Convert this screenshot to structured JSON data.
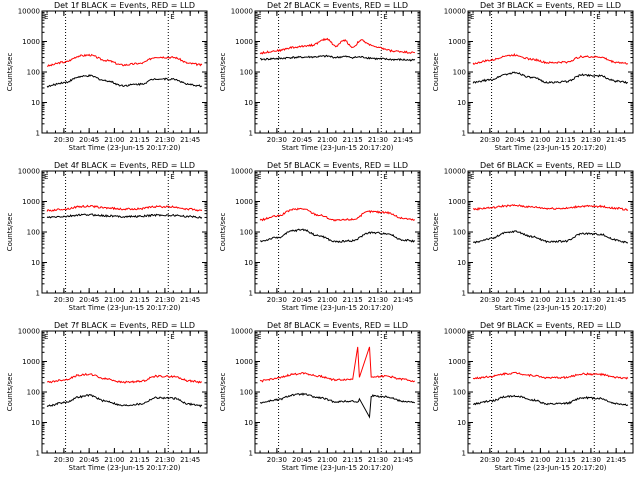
{
  "figure": {
    "common": {
      "title_suffix": "BLACK = Events, RED = LLD",
      "xlabel": "Start Time (23-Jun-15 20:17:20)",
      "ylabel": "Counts/sec",
      "x_tick_labels": [
        "20:30",
        "20:45",
        "21:00",
        "21:15",
        "21:30",
        "21:45"
      ],
      "y_tick_labels": [
        "1",
        "10",
        "100",
        "1000",
        "10000"
      ],
      "corner_marks": [
        "E",
        "E"
      ],
      "colors": {
        "events": "#000000",
        "lld": "#ff0000",
        "axes": "#000000"
      }
    }
  },
  "chart_data": [
    {
      "type": "line",
      "title": "Det 1f BLACK = Events, RED = LLD",
      "xlabel": "Start Time (23-Jun-15 20:17:20)",
      "ylabel": "Counts/sec",
      "x_range": [
        "20:17",
        "21:55"
      ],
      "ylim": [
        1,
        10000
      ],
      "yscale": "log",
      "vlines": [
        "20:31",
        "21:32"
      ],
      "x": [
        "20:20",
        "20:30",
        "20:40",
        "20:45",
        "20:55",
        "21:05",
        "21:15",
        "21:25",
        "21:35",
        "21:45",
        "21:52"
      ],
      "series": [
        {
          "name": "LLD",
          "values": [
            160,
            210,
            340,
            360,
            240,
            170,
            190,
            310,
            300,
            190,
            170
          ]
        },
        {
          "name": "Events",
          "values": [
            34,
            45,
            70,
            75,
            52,
            36,
            40,
            60,
            58,
            38,
            35
          ]
        }
      ]
    },
    {
      "type": "line",
      "title": "Det 2f BLACK = Events, RED = LLD",
      "xlabel": "Start Time (23-Jun-15 20:17:20)",
      "ylabel": "Counts/sec",
      "x_range": [
        "20:17",
        "21:55"
      ],
      "ylim": [
        1,
        10000
      ],
      "yscale": "log",
      "vlines": [
        "20:31",
        "21:32"
      ],
      "x": [
        "20:20",
        "20:30",
        "20:40",
        "20:50",
        "21:00",
        "21:05",
        "21:10",
        "21:15",
        "21:20",
        "21:25",
        "21:30",
        "21:40",
        "21:52"
      ],
      "series": [
        {
          "name": "LLD",
          "values": [
            420,
            500,
            640,
            750,
            1200,
            700,
            1100,
            650,
            1100,
            800,
            620,
            480,
            430
          ]
        },
        {
          "name": "Events",
          "values": [
            260,
            275,
            300,
            310,
            330,
            300,
            320,
            300,
            310,
            290,
            270,
            255,
            245
          ]
        }
      ]
    },
    {
      "type": "line",
      "title": "Det 3f BLACK = Events, RED = LLD",
      "xlabel": "Start Time (23-Jun-15 20:17:20)",
      "ylabel": "Counts/sec",
      "x_range": [
        "20:17",
        "21:55"
      ],
      "ylim": [
        1,
        10000
      ],
      "yscale": "log",
      "vlines": [
        "20:31",
        "21:32"
      ],
      "x": [
        "20:20",
        "20:30",
        "20:40",
        "20:45",
        "20:55",
        "21:05",
        "21:15",
        "21:25",
        "21:35",
        "21:45",
        "21:52"
      ],
      "series": [
        {
          "name": "LLD",
          "values": [
            190,
            240,
            340,
            360,
            260,
            200,
            210,
            320,
            310,
            210,
            190
          ]
        },
        {
          "name": "Events",
          "values": [
            45,
            55,
            85,
            95,
            65,
            45,
            48,
            80,
            75,
            50,
            45
          ]
        }
      ]
    },
    {
      "type": "line",
      "title": "Det 4f BLACK = Events, RED = LLD",
      "xlabel": "Start Time (23-Jun-15 20:17:20)",
      "ylabel": "Counts/sec",
      "x_range": [
        "20:17",
        "21:55"
      ],
      "ylim": [
        1,
        10000
      ],
      "yscale": "log",
      "vlines": [
        "20:31",
        "21:32"
      ],
      "x": [
        "20:20",
        "20:30",
        "20:40",
        "20:45",
        "20:55",
        "21:05",
        "21:15",
        "21:25",
        "21:35",
        "21:45",
        "21:52"
      ],
      "series": [
        {
          "name": "LLD",
          "values": [
            500,
            560,
            680,
            700,
            620,
            560,
            580,
            680,
            660,
            560,
            500
          ]
        },
        {
          "name": "Events",
          "values": [
            300,
            320,
            360,
            370,
            340,
            320,
            325,
            360,
            350,
            320,
            300
          ]
        }
      ]
    },
    {
      "type": "line",
      "title": "Det 5f BLACK = Events, RED = LLD",
      "xlabel": "Start Time (23-Jun-15 20:17:20)",
      "ylabel": "Counts/sec",
      "x_range": [
        "20:17",
        "21:55"
      ],
      "ylim": [
        1,
        10000
      ],
      "yscale": "log",
      "vlines": [
        "20:31",
        "21:32"
      ],
      "x": [
        "20:20",
        "20:30",
        "20:40",
        "20:45",
        "20:55",
        "21:05",
        "21:15",
        "21:25",
        "21:35",
        "21:45",
        "21:52"
      ],
      "series": [
        {
          "name": "LLD",
          "values": [
            250,
            330,
            550,
            580,
            360,
            240,
            260,
            470,
            440,
            280,
            250
          ]
        },
        {
          "name": "Events",
          "values": [
            50,
            65,
            110,
            120,
            75,
            48,
            52,
            95,
            90,
            55,
            50
          ]
        }
      ]
    },
    {
      "type": "line",
      "title": "Det 6f BLACK = Events, RED = LLD",
      "xlabel": "Start Time (23-Jun-15 20:17:20)",
      "ylabel": "Counts/sec",
      "x_range": [
        "20:17",
        "21:55"
      ],
      "ylim": [
        1,
        10000
      ],
      "yscale": "log",
      "vlines": [
        "20:31",
        "21:32"
      ],
      "x": [
        "20:20",
        "20:30",
        "20:40",
        "20:45",
        "20:55",
        "21:05",
        "21:15",
        "21:25",
        "21:35",
        "21:45",
        "21:52"
      ],
      "series": [
        {
          "name": "LLD",
          "values": [
            560,
            620,
            720,
            740,
            660,
            590,
            600,
            700,
            690,
            600,
            540
          ]
        },
        {
          "name": "Events",
          "values": [
            45,
            60,
            95,
            105,
            70,
            48,
            50,
            90,
            85,
            55,
            45
          ]
        }
      ]
    },
    {
      "type": "line",
      "title": "Det 7f BLACK = Events, RED = LLD",
      "xlabel": "Start Time (23-Jun-15 20:17:20)",
      "ylabel": "Counts/sec",
      "x_range": [
        "20:17",
        "21:55"
      ],
      "ylim": [
        1,
        10000
      ],
      "yscale": "log",
      "vlines": [
        "20:31",
        "21:32"
      ],
      "x": [
        "20:20",
        "20:30",
        "20:40",
        "20:45",
        "20:55",
        "21:05",
        "21:15",
        "21:25",
        "21:35",
        "21:45",
        "21:52"
      ],
      "series": [
        {
          "name": "LLD",
          "values": [
            210,
            250,
            360,
            380,
            270,
            210,
            220,
            330,
            320,
            230,
            210
          ]
        },
        {
          "name": "Events",
          "values": [
            35,
            45,
            70,
            78,
            50,
            36,
            40,
            65,
            62,
            40,
            35
          ]
        }
      ]
    },
    {
      "type": "line",
      "title": "Det 8f BLACK = Events, RED = LLD",
      "xlabel": "Start Time (23-Jun-15 20:17:20)",
      "ylabel": "Counts/sec",
      "x_range": [
        "20:17",
        "21:55"
      ],
      "ylim": [
        1,
        10000
      ],
      "yscale": "log",
      "vlines": [
        "20:31",
        "21:32"
      ],
      "x": [
        "20:20",
        "20:30",
        "20:40",
        "20:45",
        "20:55",
        "21:05",
        "21:15",
        "21:18",
        "21:19",
        "21:25",
        "21:26",
        "21:35",
        "21:45",
        "21:52"
      ],
      "series": [
        {
          "name": "LLD",
          "values": [
            230,
            280,
            380,
            420,
            330,
            250,
            260,
            3000,
            300,
            3000,
            320,
            330,
            260,
            230
          ]
        },
        {
          "name": "Events",
          "values": [
            45,
            55,
            80,
            85,
            65,
            48,
            50,
            45,
            60,
            15,
            75,
            70,
            50,
            45
          ]
        }
      ]
    },
    {
      "type": "line",
      "title": "Det 9f BLACK = Events, RED = LLD",
      "xlabel": "Start Time (23-Jun-15 20:17:20)",
      "ylabel": "Counts/sec",
      "x_range": [
        "20:17",
        "21:55"
      ],
      "ylim": [
        1,
        10000
      ],
      "yscale": "log",
      "vlines": [
        "20:31",
        "21:32"
      ],
      "x": [
        "20:20",
        "20:30",
        "20:40",
        "20:45",
        "20:55",
        "21:05",
        "21:15",
        "21:25",
        "21:35",
        "21:45",
        "21:52"
      ],
      "series": [
        {
          "name": "LLD",
          "values": [
            280,
            320,
            400,
            420,
            350,
            290,
            300,
            390,
            380,
            300,
            280
          ]
        },
        {
          "name": "Events",
          "values": [
            40,
            50,
            70,
            75,
            55,
            40,
            42,
            65,
            62,
            42,
            38
          ]
        }
      ]
    }
  ]
}
